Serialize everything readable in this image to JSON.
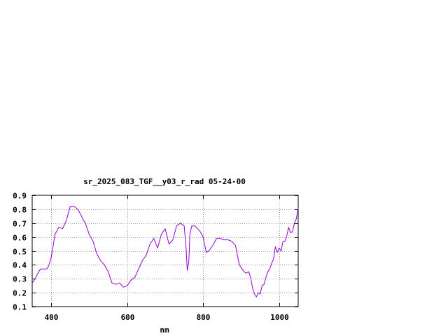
{
  "chart_data": {
    "type": "line",
    "title": "sr_2025_083_TGF__y03_r_rad 05-24-00",
    "xlabel": "nm",
    "ylabel": "",
    "xlim": [
      350,
      1050
    ],
    "ylim": [
      0.1,
      0.9
    ],
    "xticks": [
      400,
      600,
      800,
      1000
    ],
    "yticks": [
      0.1,
      0.2,
      0.3,
      0.4,
      0.5,
      0.6,
      0.7,
      0.8,
      0.9
    ],
    "xtick_labels": [
      "400",
      "600",
      "800",
      "1000"
    ],
    "ytick_labels": [
      "0.1",
      "0.2",
      "0.3",
      "0.4",
      "0.5",
      "0.6",
      "0.7",
      "0.8",
      "0.9"
    ],
    "grid": true,
    "legend": "none",
    "series": [
      {
        "color": "#9400d3",
        "x": [
          350,
          358,
          365,
          372,
          380,
          388,
          393,
          400,
          410,
          420,
          430,
          440,
          450,
          460,
          470,
          478,
          485,
          490,
          500,
          510,
          520,
          530,
          540,
          550,
          560,
          570,
          580,
          590,
          600,
          610,
          620,
          630,
          640,
          650,
          660,
          670,
          680,
          690,
          700,
          710,
          720,
          730,
          740,
          750,
          755,
          758,
          762,
          765,
          770,
          778,
          785,
          792,
          800,
          808,
          815,
          825,
          835,
          845,
          855,
          865,
          875,
          885,
          890,
          895,
          905,
          912,
          920,
          925,
          930,
          935,
          940,
          945,
          950,
          955,
          960,
          965,
          970,
          975,
          980,
          985,
          990,
          995,
          1000,
          1005,
          1010,
          1015,
          1020,
          1025,
          1030,
          1035,
          1040,
          1045,
          1050
        ],
        "y": [
          0.27,
          0.3,
          0.34,
          0.37,
          0.37,
          0.37,
          0.39,
          0.45,
          0.62,
          0.67,
          0.66,
          0.72,
          0.82,
          0.82,
          0.8,
          0.76,
          0.72,
          0.7,
          0.62,
          0.57,
          0.48,
          0.43,
          0.4,
          0.35,
          0.27,
          0.26,
          0.27,
          0.24,
          0.25,
          0.29,
          0.31,
          0.37,
          0.43,
          0.47,
          0.55,
          0.59,
          0.52,
          0.62,
          0.66,
          0.55,
          0.58,
          0.68,
          0.7,
          0.68,
          0.52,
          0.36,
          0.42,
          0.62,
          0.68,
          0.68,
          0.66,
          0.64,
          0.6,
          0.49,
          0.5,
          0.54,
          0.59,
          0.59,
          0.58,
          0.58,
          0.57,
          0.54,
          0.47,
          0.4,
          0.36,
          0.34,
          0.35,
          0.31,
          0.23,
          0.19,
          0.17,
          0.2,
          0.19,
          0.25,
          0.26,
          0.31,
          0.35,
          0.37,
          0.41,
          0.44,
          0.53,
          0.49,
          0.52,
          0.5,
          0.57,
          0.57,
          0.61,
          0.67,
          0.63,
          0.64,
          0.7,
          0.73,
          0.81
        ]
      }
    ]
  }
}
